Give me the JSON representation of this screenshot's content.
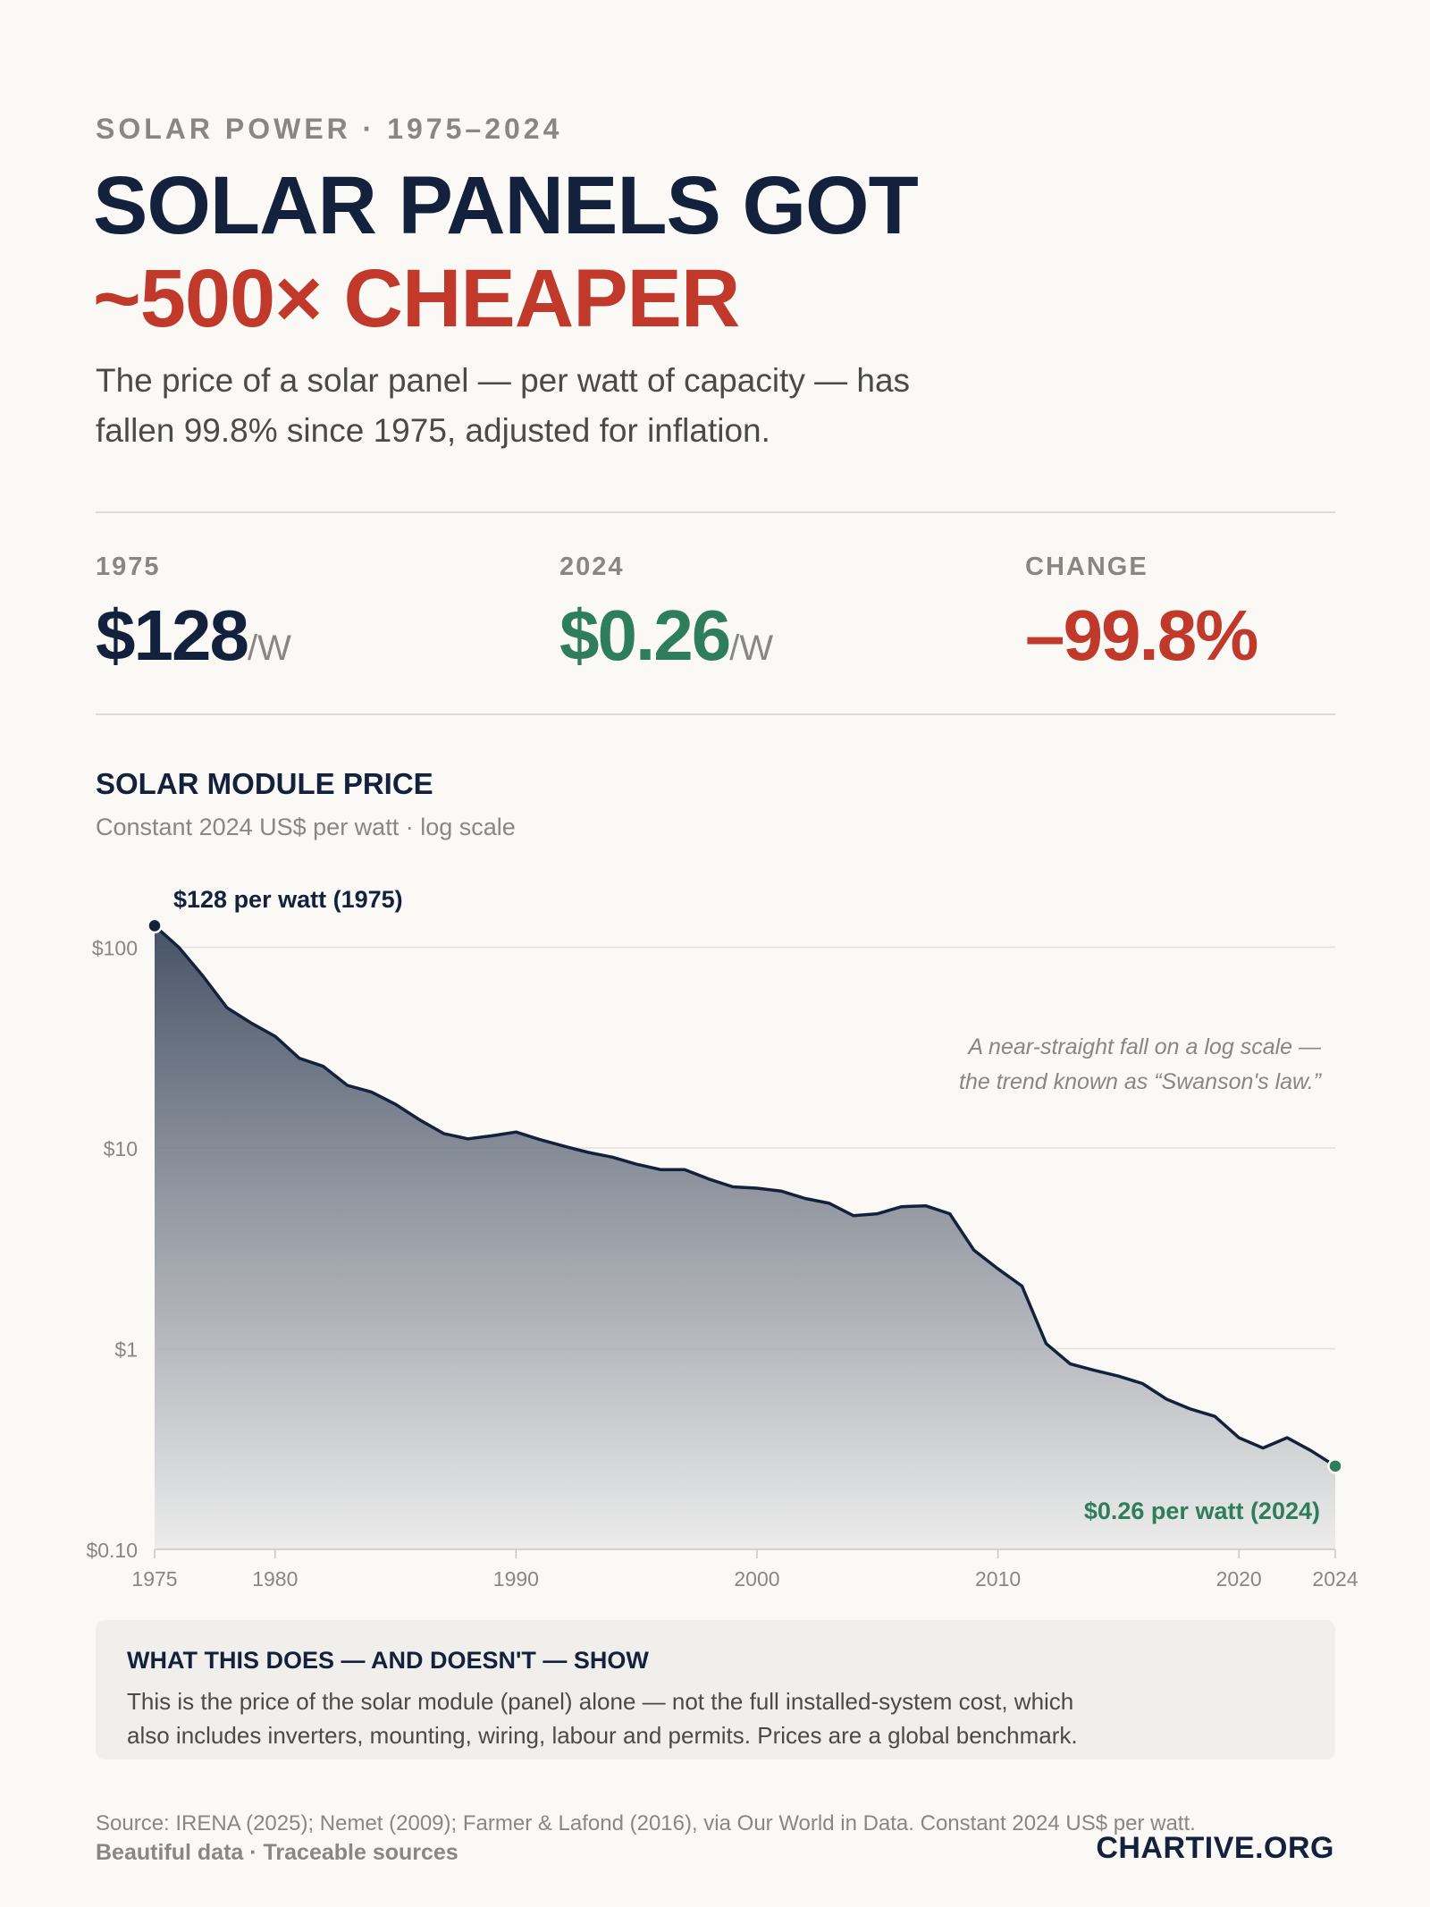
{
  "header": {
    "eyebrow": "SOLAR POWER · 1975–2024",
    "title_line1": "SOLAR PANELS GOT",
    "title_line2": "~500× CHEAPER",
    "intro_line1": "The price of a solar panel — per watt of capacity — has",
    "intro_line2": "fallen 99.8% since 1975, adjusted for inflation."
  },
  "stats": [
    {
      "label": "1975",
      "value": "$128",
      "unit": "/W",
      "color": "#14213d"
    },
    {
      "label": "2024",
      "value": "$0.26",
      "unit": "/W",
      "color": "#2e7d5b"
    },
    {
      "label": "CHANGE",
      "value": "–99.8%",
      "unit": "",
      "color": "#c0392b"
    }
  ],
  "chart_header": {
    "title": "SOLAR MODULE PRICE",
    "subtitle": "Constant 2024 US$ per watt · log scale"
  },
  "chart_data": {
    "type": "area",
    "title": "SOLAR MODULE PRICE",
    "subtitle": "Constant 2024 US$ per watt · log scale",
    "y_scale": "log",
    "ylim": [
      0.1,
      128
    ],
    "xlim": [
      1975,
      2024
    ],
    "grid": true,
    "y_ticks": [
      {
        "value": 100,
        "label": "$100"
      },
      {
        "value": 10,
        "label": "$10"
      },
      {
        "value": 1,
        "label": "$1"
      },
      {
        "value": 0.1,
        "label": "$0.10"
      }
    ],
    "x_ticks": [
      {
        "value": 1975,
        "label": "1975"
      },
      {
        "value": 1980,
        "label": "1980"
      },
      {
        "value": 1990,
        "label": "1990"
      },
      {
        "value": 2000,
        "label": "2000"
      },
      {
        "value": 2010,
        "label": "2010"
      },
      {
        "value": 2020,
        "label": "2020"
      },
      {
        "value": 2024,
        "label": "2024"
      }
    ],
    "series": [
      {
        "color": "#14213d",
        "x": [
          1975,
          1976,
          1977,
          1978,
          1979,
          1980,
          1981,
          1982,
          1983,
          1984,
          1985,
          1986,
          1987,
          1988,
          1989,
          1990,
          1991,
          1992,
          1993,
          1994,
          1995,
          1996,
          1997,
          1998,
          1999,
          2000,
          2001,
          2002,
          2003,
          2004,
          2005,
          2006,
          2007,
          2008,
          2009,
          2010,
          2011,
          2012,
          2013,
          2014,
          2015,
          2016,
          2017,
          2018,
          2019,
          2020,
          2021,
          2022,
          2023,
          2024
        ],
        "values": [
          128,
          100,
          72,
          50,
          42,
          36,
          28,
          25.5,
          20.5,
          19,
          16.5,
          13.8,
          11.8,
          11.1,
          11.5,
          12,
          11,
          10.2,
          9.5,
          9,
          8.3,
          7.8,
          7.8,
          7,
          6.4,
          6.3,
          6.1,
          5.6,
          5.3,
          4.6,
          4.7,
          5.1,
          5.15,
          4.7,
          3.1,
          2.5,
          2.05,
          1.06,
          0.84,
          0.78,
          0.73,
          0.67,
          0.56,
          0.5,
          0.46,
          0.36,
          0.32,
          0.36,
          0.31,
          0.26
        ]
      }
    ],
    "annotations": [
      {
        "text": "$128 per watt (1975)",
        "x": 1975,
        "y": 128
      },
      {
        "text": "$0.26 per watt (2024)",
        "x": 2024,
        "y": 0.26
      },
      {
        "text": "A near-straight fall on a log scale —",
        "line": 1
      },
      {
        "text": "the trend known as “Swanson's law.”",
        "line": 2
      }
    ],
    "colors": {
      "line": "#14213d",
      "start_dot": "#14213d",
      "end_dot": "#2e7d5b",
      "end_label": "#2e7d5b"
    }
  },
  "note": {
    "title": "WHAT THIS DOES — AND DOESN'T — SHOW",
    "line1": "This is the price of the solar module (panel) alone — not the full installed-system cost, which",
    "line2": "also includes inverters, mounting, wiring, labour and permits. Prices are a global benchmark."
  },
  "footer": {
    "source": "Source: IRENA (2025); Nemet (2009); Farmer & Lafond (2016), via Our World in Data. Constant 2024 US$ per watt.",
    "tagline": "Beautiful data · Traceable sources",
    "brand": "CHARTIVE.ORG"
  }
}
